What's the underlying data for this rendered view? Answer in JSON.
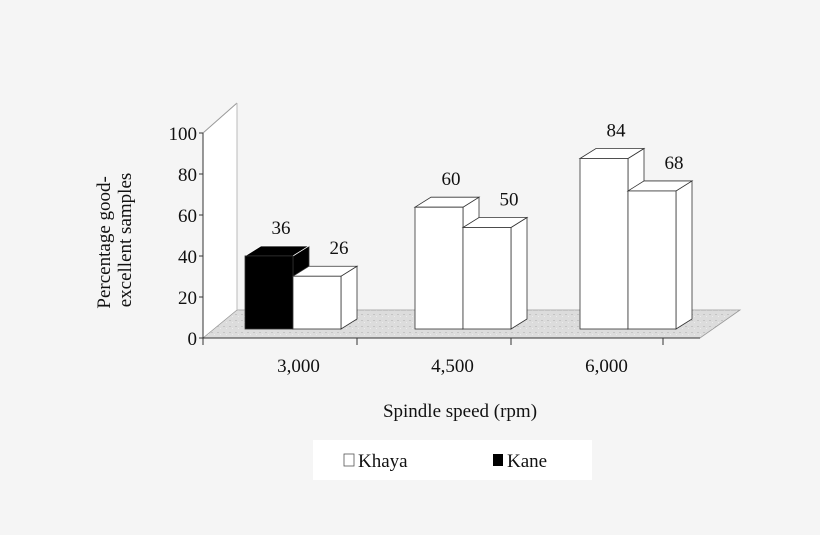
{
  "chart_data": {
    "type": "bar",
    "style": "3d-clustered",
    "categories": [
      "3,000",
      "4,500",
      "6,000"
    ],
    "bars": [
      [
        {
          "value": 36,
          "fill": "#000000"
        },
        {
          "value": 26,
          "fill": "#ffffff"
        }
      ],
      [
        {
          "value": 60,
          "fill": "#ffffff"
        },
        {
          "value": 50,
          "fill": "#ffffff"
        }
      ],
      [
        {
          "value": 84,
          "fill": "#ffffff"
        },
        {
          "value": 68,
          "fill": "#ffffff"
        }
      ]
    ],
    "xlabel": "Spindle speed (rpm)",
    "ylabel": [
      "Percentage good-",
      "excellent samples"
    ],
    "ylim": [
      0,
      100
    ],
    "yticks": [
      "0",
      "20",
      "40",
      "60",
      "80",
      "100"
    ],
    "grid": false,
    "legend": {
      "placement": "bottom",
      "items": [
        {
          "name": "Khaya",
          "color": "#ffffff"
        },
        {
          "name": "Kane",
          "color": "#000000"
        }
      ]
    }
  }
}
